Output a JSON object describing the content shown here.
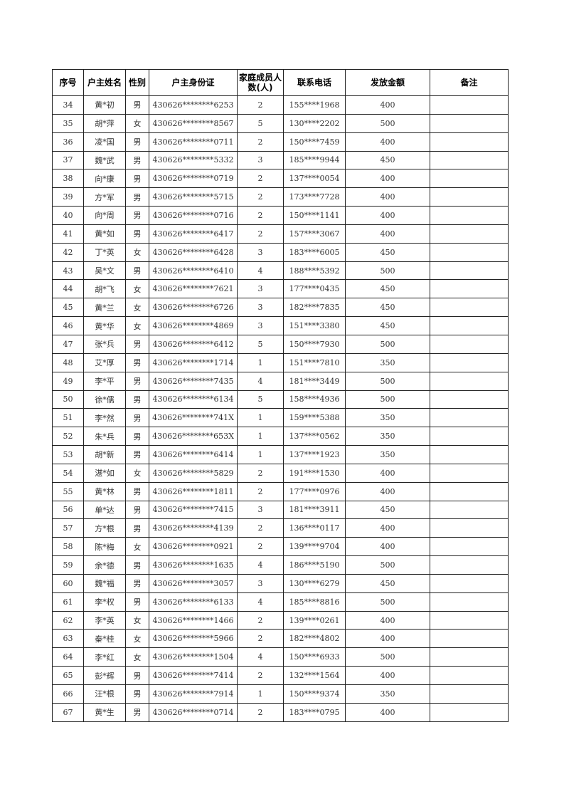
{
  "table": {
    "headers": [
      "序号",
      "户主姓名",
      "性别",
      "户主身份证",
      "家庭成员人数(人)",
      "联系电话",
      "发放金额",
      "备注"
    ],
    "rows": [
      [
        "34",
        "黄*初",
        "男",
        "430626********6253",
        "2",
        "155****1968",
        "400",
        ""
      ],
      [
        "35",
        "胡*萍",
        "女",
        "430626********8567",
        "5",
        "130****2202",
        "500",
        ""
      ],
      [
        "36",
        "凌*国",
        "男",
        "430626********0711",
        "2",
        "150****7459",
        "400",
        ""
      ],
      [
        "37",
        "魏*武",
        "男",
        "430626********5332",
        "3",
        "185****9944",
        "450",
        ""
      ],
      [
        "38",
        "向*康",
        "男",
        "430626********0719",
        "2",
        "137****0054",
        "400",
        ""
      ],
      [
        "39",
        "方*军",
        "男",
        "430626********5715",
        "2",
        "173****7728",
        "400",
        ""
      ],
      [
        "40",
        "向*周",
        "男",
        "430626********0716",
        "2",
        "150****1141",
        "400",
        ""
      ],
      [
        "41",
        "黄*如",
        "男",
        "430626********6417",
        "2",
        "157****3067",
        "400",
        ""
      ],
      [
        "42",
        "丁*英",
        "女",
        "430626********6428",
        "3",
        "183****6005",
        "450",
        ""
      ],
      [
        "43",
        "吴*文",
        "男",
        "430626********6410",
        "4",
        "188****5392",
        "500",
        ""
      ],
      [
        "44",
        "胡*飞",
        "女",
        "430626********7621",
        "3",
        "177****0435",
        "450",
        ""
      ],
      [
        "45",
        "黄*兰",
        "女",
        "430626********6726",
        "3",
        "182****7835",
        "450",
        ""
      ],
      [
        "46",
        "黄*华",
        "女",
        "430626********4869",
        "3",
        "151****3380",
        "450",
        ""
      ],
      [
        "47",
        "张*兵",
        "男",
        "430626********6412",
        "5",
        "150****7930",
        "500",
        ""
      ],
      [
        "48",
        "艾*厚",
        "男",
        "430626********1714",
        "1",
        "151****7810",
        "350",
        ""
      ],
      [
        "49",
        "李*平",
        "男",
        "430626********7435",
        "4",
        "181****3449",
        "500",
        ""
      ],
      [
        "50",
        "徐*儒",
        "男",
        "430626********6134",
        "5",
        "158****4936",
        "500",
        ""
      ],
      [
        "51",
        "李*然",
        "男",
        "430626********741X",
        "1",
        "159****5388",
        "350",
        ""
      ],
      [
        "52",
        "朱*兵",
        "男",
        "430626********653X",
        "1",
        "137****0562",
        "350",
        ""
      ],
      [
        "53",
        "胡*新",
        "男",
        "430626********6414",
        "1",
        "137****1923",
        "350",
        ""
      ],
      [
        "54",
        "湛*如",
        "女",
        "430626********5829",
        "2",
        "191****1530",
        "400",
        ""
      ],
      [
        "55",
        "黄*林",
        "男",
        "430626********1811",
        "2",
        "177****0976",
        "400",
        ""
      ],
      [
        "56",
        "单*达",
        "男",
        "430626********7415",
        "3",
        "181****3911",
        "450",
        ""
      ],
      [
        "57",
        "方*根",
        "男",
        "430626********4139",
        "2",
        "136****0117",
        "400",
        ""
      ],
      [
        "58",
        "陈*梅",
        "女",
        "430626********0921",
        "2",
        "139****9704",
        "400",
        ""
      ],
      [
        "59",
        "余*德",
        "男",
        "430626********1635",
        "4",
        "186****5190",
        "500",
        ""
      ],
      [
        "60",
        "魏*福",
        "男",
        "430626********3057",
        "3",
        "130****6279",
        "450",
        ""
      ],
      [
        "61",
        "李*权",
        "男",
        "430626********6133",
        "4",
        "185****8816",
        "500",
        ""
      ],
      [
        "62",
        "李*英",
        "女",
        "430626********1466",
        "2",
        "139****0261",
        "400",
        ""
      ],
      [
        "63",
        "秦*桂",
        "女",
        "430626********5966",
        "2",
        "182****4802",
        "400",
        ""
      ],
      [
        "64",
        "李*红",
        "女",
        "430626********1504",
        "4",
        "150****6933",
        "500",
        ""
      ],
      [
        "65",
        "彭*辉",
        "男",
        "430626********7414",
        "2",
        "132****1564",
        "400",
        ""
      ],
      [
        "66",
        "汪*根",
        "男",
        "430626********7914",
        "1",
        "150****9374",
        "350",
        ""
      ],
      [
        "67",
        "黄*生",
        "男",
        "430626********0714",
        "2",
        "183****0795",
        "400",
        ""
      ]
    ]
  }
}
